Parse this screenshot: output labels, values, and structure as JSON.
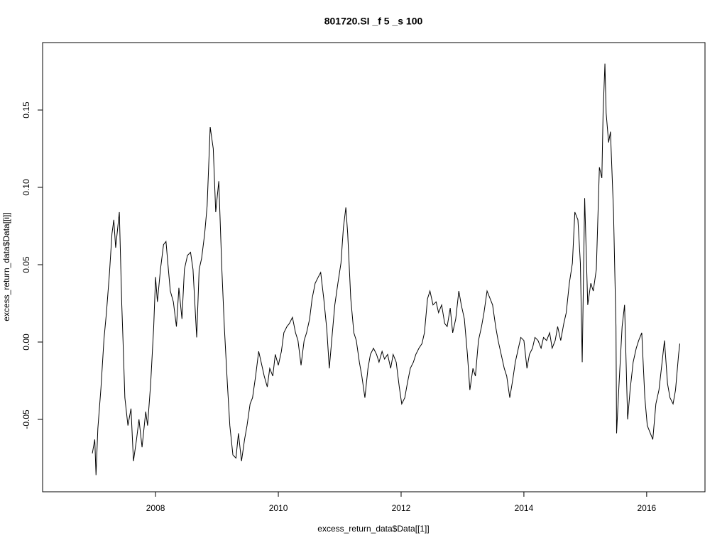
{
  "chart_data": {
    "type": "line",
    "title": "801720.SI _f 5 _s 100",
    "x_label": "excess_return_data$Data[[1]]",
    "y_label": "excess_return_data$Data[[i]]",
    "color": "#000000",
    "xlim": [
      2006.16,
      2016.95
    ],
    "ylim": [
      -0.0968,
      0.1936
    ],
    "xticks": [
      2008,
      2010,
      2012,
      2014,
      2016
    ],
    "yticks": [
      -0.05,
      {
        "value": 0,
        "label": "0.00"
      },
      0.05,
      {
        "value": 0.1,
        "label": "0.10"
      },
      0.15
    ],
    "x": [
      2006.97,
      2007.01,
      2007.03,
      2007.06,
      2007.11,
      2007.16,
      2007.2,
      2007.25,
      2007.29,
      2007.32,
      2007.35,
      2007.41,
      2007.45,
      2007.47,
      2007.5,
      2007.55,
      2007.6,
      2007.64,
      2007.69,
      2007.73,
      2007.78,
      2007.84,
      2007.87,
      2007.92,
      2007.97,
      2008.0,
      2008.03,
      2008.08,
      2008.13,
      2008.17,
      2008.2,
      2008.24,
      2008.29,
      2008.34,
      2008.38,
      2008.43,
      2008.47,
      2008.52,
      2008.57,
      2008.61,
      2008.67,
      2008.71,
      2008.75,
      2008.8,
      2008.84,
      2008.89,
      2008.94,
      2008.98,
      2009.03,
      2009.08,
      2009.12,
      2009.17,
      2009.21,
      2009.26,
      2009.31,
      2009.35,
      2009.4,
      2009.45,
      2009.49,
      2009.54,
      2009.58,
      2009.63,
      2009.68,
      2009.72,
      2009.77,
      2009.82,
      2009.86,
      2009.91,
      2009.95,
      2010.0,
      2010.05,
      2010.09,
      2010.14,
      2010.18,
      2010.23,
      2010.28,
      2010.32,
      2010.37,
      2010.42,
      2010.46,
      2010.51,
      2010.55,
      2010.6,
      2010.65,
      2010.69,
      2010.74,
      2010.79,
      2010.83,
      2010.88,
      2010.92,
      2010.97,
      2011.02,
      2011.06,
      2011.1,
      2011.13,
      2011.18,
      2011.23,
      2011.27,
      2011.32,
      2011.36,
      2011.41,
      2011.46,
      2011.5,
      2011.55,
      2011.6,
      2011.64,
      2011.69,
      2011.73,
      2011.78,
      2011.83,
      2011.87,
      2011.92,
      2011.97,
      2012.01,
      2012.06,
      2012.1,
      2012.15,
      2012.2,
      2012.24,
      2012.29,
      2012.34,
      2012.38,
      2012.43,
      2012.47,
      2012.52,
      2012.57,
      2012.61,
      2012.66,
      2012.71,
      2012.75,
      2012.8,
      2012.84,
      2012.89,
      2012.94,
      2012.98,
      2013.03,
      2013.08,
      2013.12,
      2013.17,
      2013.21,
      2013.26,
      2013.31,
      2013.35,
      2013.4,
      2013.45,
      2013.49,
      2013.54,
      2013.58,
      2013.63,
      2013.68,
      2013.72,
      2013.77,
      2013.82,
      2013.86,
      2013.91,
      2013.95,
      2014.0,
      2014.05,
      2014.09,
      2014.14,
      2014.18,
      2014.23,
      2014.28,
      2014.32,
      2014.37,
      2014.42,
      2014.46,
      2014.51,
      2014.55,
      2014.6,
      2014.65,
      2014.69,
      2014.74,
      2014.79,
      2014.83,
      2014.88,
      2014.92,
      2014.95,
      2014.99,
      2015.04,
      2015.09,
      2015.13,
      2015.18,
      2015.23,
      2015.27,
      2015.29,
      2015.32,
      2015.34,
      2015.38,
      2015.41,
      2015.46,
      2015.5,
      2015.51,
      2015.55,
      2015.6,
      2015.64,
      2015.69,
      2015.73,
      2015.78,
      2015.83,
      2015.87,
      2015.92,
      2015.97,
      2016.01,
      2016.06,
      2016.1,
      2016.15,
      2016.2,
      2016.24,
      2016.29,
      2016.34,
      2016.38,
      2016.43,
      2016.47,
      2016.52,
      2016.54
    ],
    "values": [
      -0.072,
      -0.063,
      -0.086,
      -0.056,
      -0.03,
      0.002,
      0.019,
      0.045,
      0.07,
      0.079,
      0.061,
      0.084,
      0.024,
      0.001,
      -0.036,
      -0.054,
      -0.043,
      -0.077,
      -0.063,
      -0.05,
      -0.068,
      -0.045,
      -0.054,
      -0.027,
      0.01,
      0.042,
      0.026,
      0.047,
      0.063,
      0.065,
      0.051,
      0.033,
      0.026,
      0.01,
      0.035,
      0.015,
      0.047,
      0.056,
      0.058,
      0.047,
      0.003,
      0.047,
      0.054,
      0.07,
      0.088,
      0.139,
      0.125,
      0.084,
      0.104,
      0.047,
      0.01,
      -0.027,
      -0.054,
      -0.073,
      -0.075,
      -0.059,
      -0.077,
      -0.063,
      -0.054,
      -0.04,
      -0.036,
      -0.022,
      -0.006,
      -0.013,
      -0.022,
      -0.029,
      -0.017,
      -0.022,
      -0.008,
      -0.015,
      -0.006,
      0.006,
      0.01,
      0.012,
      0.016,
      0.006,
      0.001,
      -0.015,
      0.001,
      0.006,
      0.015,
      0.028,
      0.038,
      0.042,
      0.045,
      0.028,
      0.008,
      -0.017,
      0.006,
      0.024,
      0.038,
      0.051,
      0.074,
      0.087,
      0.07,
      0.028,
      0.006,
      0.001,
      -0.013,
      -0.022,
      -0.036,
      -0.017,
      -0.008,
      -0.004,
      -0.008,
      -0.013,
      -0.006,
      -0.011,
      -0.008,
      -0.017,
      -0.008,
      -0.013,
      -0.029,
      -0.04,
      -0.036,
      -0.027,
      -0.017,
      -0.013,
      -0.008,
      -0.004,
      -0.001,
      0.006,
      0.028,
      0.033,
      0.024,
      0.026,
      0.019,
      0.024,
      0.012,
      0.01,
      0.022,
      0.006,
      0.015,
      0.033,
      0.024,
      0.015,
      -0.008,
      -0.031,
      -0.017,
      -0.022,
      0.001,
      0.01,
      0.019,
      0.033,
      0.028,
      0.024,
      0.01,
      0.001,
      -0.008,
      -0.017,
      -0.022,
      -0.036,
      -0.024,
      -0.013,
      -0.004,
      0.003,
      0.001,
      -0.017,
      -0.008,
      -0.004,
      0.003,
      0.001,
      -0.004,
      0.003,
      0.001,
      0.006,
      -0.004,
      0.001,
      0.01,
      0.001,
      0.012,
      0.019,
      0.038,
      0.051,
      0.084,
      0.079,
      0.051,
      -0.013,
      0.093,
      0.024,
      0.038,
      0.033,
      0.047,
      0.113,
      0.106,
      0.148,
      0.18,
      0.148,
      0.129,
      0.136,
      0.084,
      0.01,
      -0.059,
      -0.027,
      0.01,
      0.024,
      -0.05,
      -0.031,
      -0.013,
      -0.004,
      0.001,
      0.006,
      -0.036,
      -0.054,
      -0.059,
      -0.063,
      -0.04,
      -0.031,
      -0.017,
      0.001,
      -0.027,
      -0.036,
      -0.04,
      -0.031,
      -0.008,
      -0.001
    ]
  }
}
